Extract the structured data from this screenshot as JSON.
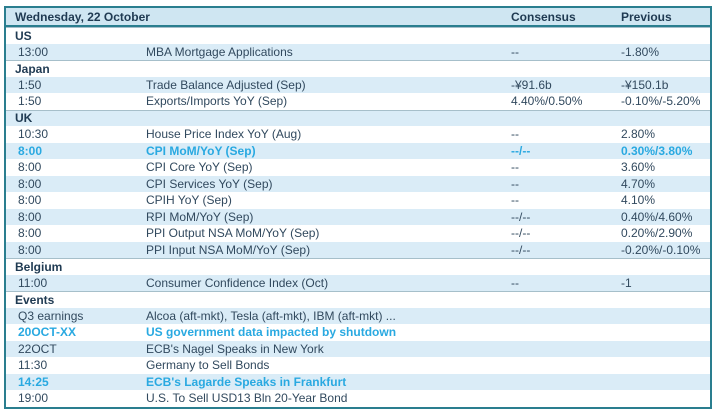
{
  "colors": {
    "border_teal": "#2a7e8f",
    "header_bg": "#cfe6f2",
    "stripe_blue": "#daecf7",
    "text_dark": "#1f3a52",
    "text_body": "#31495e",
    "highlight_cyan": "#29a9e1"
  },
  "header": {
    "date_label": "Wednesday, 22 October",
    "consensus_label": "Consensus",
    "previous_label": "Previous"
  },
  "rows": [
    {
      "type": "section",
      "label": "US"
    },
    {
      "type": "event",
      "time": "13:00",
      "event": "MBA Mortgage Applications",
      "consensus": "--",
      "previous": "-1.80%",
      "highlight": false
    },
    {
      "type": "section",
      "label": "Japan"
    },
    {
      "type": "event",
      "time": "1:50",
      "event": "Trade Balance Adjusted (Sep)",
      "consensus": "-¥91.6b",
      "previous": "-¥150.1b",
      "highlight": false
    },
    {
      "type": "event",
      "time": "1:50",
      "event": "Exports/Imports YoY (Sep)",
      "consensus": "4.40%/0.50%",
      "previous": "-0.10%/-5.20%",
      "highlight": false
    },
    {
      "type": "section",
      "label": "UK"
    },
    {
      "type": "event",
      "time": "10:30",
      "event": "House Price Index YoY (Aug)",
      "consensus": "--",
      "previous": "2.80%",
      "highlight": false
    },
    {
      "type": "event",
      "time": "8:00",
      "event": "CPI MoM/YoY (Sep)",
      "consensus": "--/--",
      "previous": "0.30%/3.80%",
      "highlight": true
    },
    {
      "type": "event",
      "time": "8:00",
      "event": "CPI Core YoY (Sep)",
      "consensus": "--",
      "previous": "3.60%",
      "highlight": false
    },
    {
      "type": "event",
      "time": "8:00",
      "event": "CPI Services YoY (Sep)",
      "consensus": "--",
      "previous": "4.70%",
      "highlight": false
    },
    {
      "type": "event",
      "time": "8:00",
      "event": "CPIH YoY (Sep)",
      "consensus": "--",
      "previous": "4.10%",
      "highlight": false
    },
    {
      "type": "event",
      "time": "8:00",
      "event": "RPI MoM/YoY (Sep)",
      "consensus": "--/--",
      "previous": "0.40%/4.60%",
      "highlight": false
    },
    {
      "type": "event",
      "time": "8:00",
      "event": "PPI Output NSA MoM/YoY (Sep)",
      "consensus": "--/--",
      "previous": "0.20%/2.90%",
      "highlight": false
    },
    {
      "type": "event",
      "time": "8:00",
      "event": "PPI Input NSA MoM/YoY (Sep)",
      "consensus": "--/--",
      "previous": "-0.20%/-0.10%",
      "highlight": false
    },
    {
      "type": "section",
      "label": "Belgium"
    },
    {
      "type": "event",
      "time": "11:00",
      "event": "Consumer Confidence Index (Oct)",
      "consensus": "--",
      "previous": "-1",
      "highlight": false
    },
    {
      "type": "section",
      "label": "Events"
    },
    {
      "type": "event",
      "time": "Q3 earnings",
      "event": "Alcoa (aft-mkt), Tesla  (aft-mkt), IBM (aft-mkt) ...",
      "consensus": "",
      "previous": "",
      "highlight": false
    },
    {
      "type": "event",
      "time": "20OCT-XX",
      "event": "US government  data impacted by shutdown",
      "consensus": "",
      "previous": "",
      "highlight": true
    },
    {
      "type": "event",
      "time": "22OCT",
      "event": "ECB's Nagel Speaks in New York",
      "consensus": "",
      "previous": "",
      "highlight": false
    },
    {
      "type": "event",
      "time": "11:30",
      "event": "Germany to Sell Bonds",
      "consensus": "",
      "previous": "",
      "highlight": false
    },
    {
      "type": "event",
      "time": "14:25",
      "event": "ECB's Lagarde Speaks in Frankfurt",
      "consensus": "",
      "previous": "",
      "highlight": true
    },
    {
      "type": "event",
      "time": "19:00",
      "event": "U.S. To Sell USD13 Bln 20-Year Bond",
      "consensus": "",
      "previous": "",
      "highlight": false
    }
  ]
}
